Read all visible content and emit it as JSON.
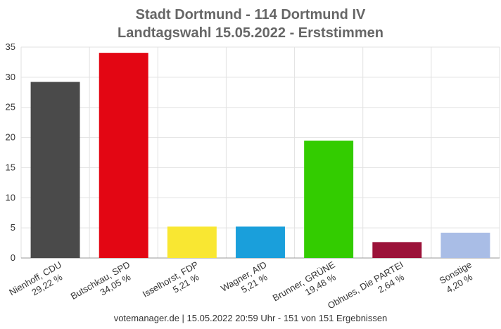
{
  "chart_data": {
    "type": "bar",
    "title": "Stadt Dortmund - 114 Dortmund IV",
    "subtitle": "Landtagswahl 15.05.2022  - Erststimmen",
    "categories": [
      "Nienhoff, CDU",
      "Butschkau, SPD",
      "Isselhorst, FDP",
      "Wagner, AfD",
      "Brunner, GRÜNE",
      "Obhues, Die PARTEI",
      "Sonstige"
    ],
    "values": [
      29.22,
      34.05,
      5.21,
      5.21,
      19.48,
      2.64,
      4.2
    ],
    "value_labels": [
      "29,22 %",
      "34,05 %",
      "5,21 %",
      "5,21 %",
      "19,48 %",
      "2,64 %",
      "4,20 %"
    ],
    "colors": [
      "#4a4a4a",
      "#e30613",
      "#f9e732",
      "#1a9fdb",
      "#33cc00",
      "#9b1239",
      "#a9bde6"
    ],
    "ylim": [
      0,
      35
    ],
    "yticks": [
      0,
      5,
      10,
      15,
      20,
      25,
      30,
      35
    ],
    "grid": true,
    "footer": "votemanager.de | 15.05.2022 20:59 Uhr - 151 von 151 Ergebnissen"
  }
}
